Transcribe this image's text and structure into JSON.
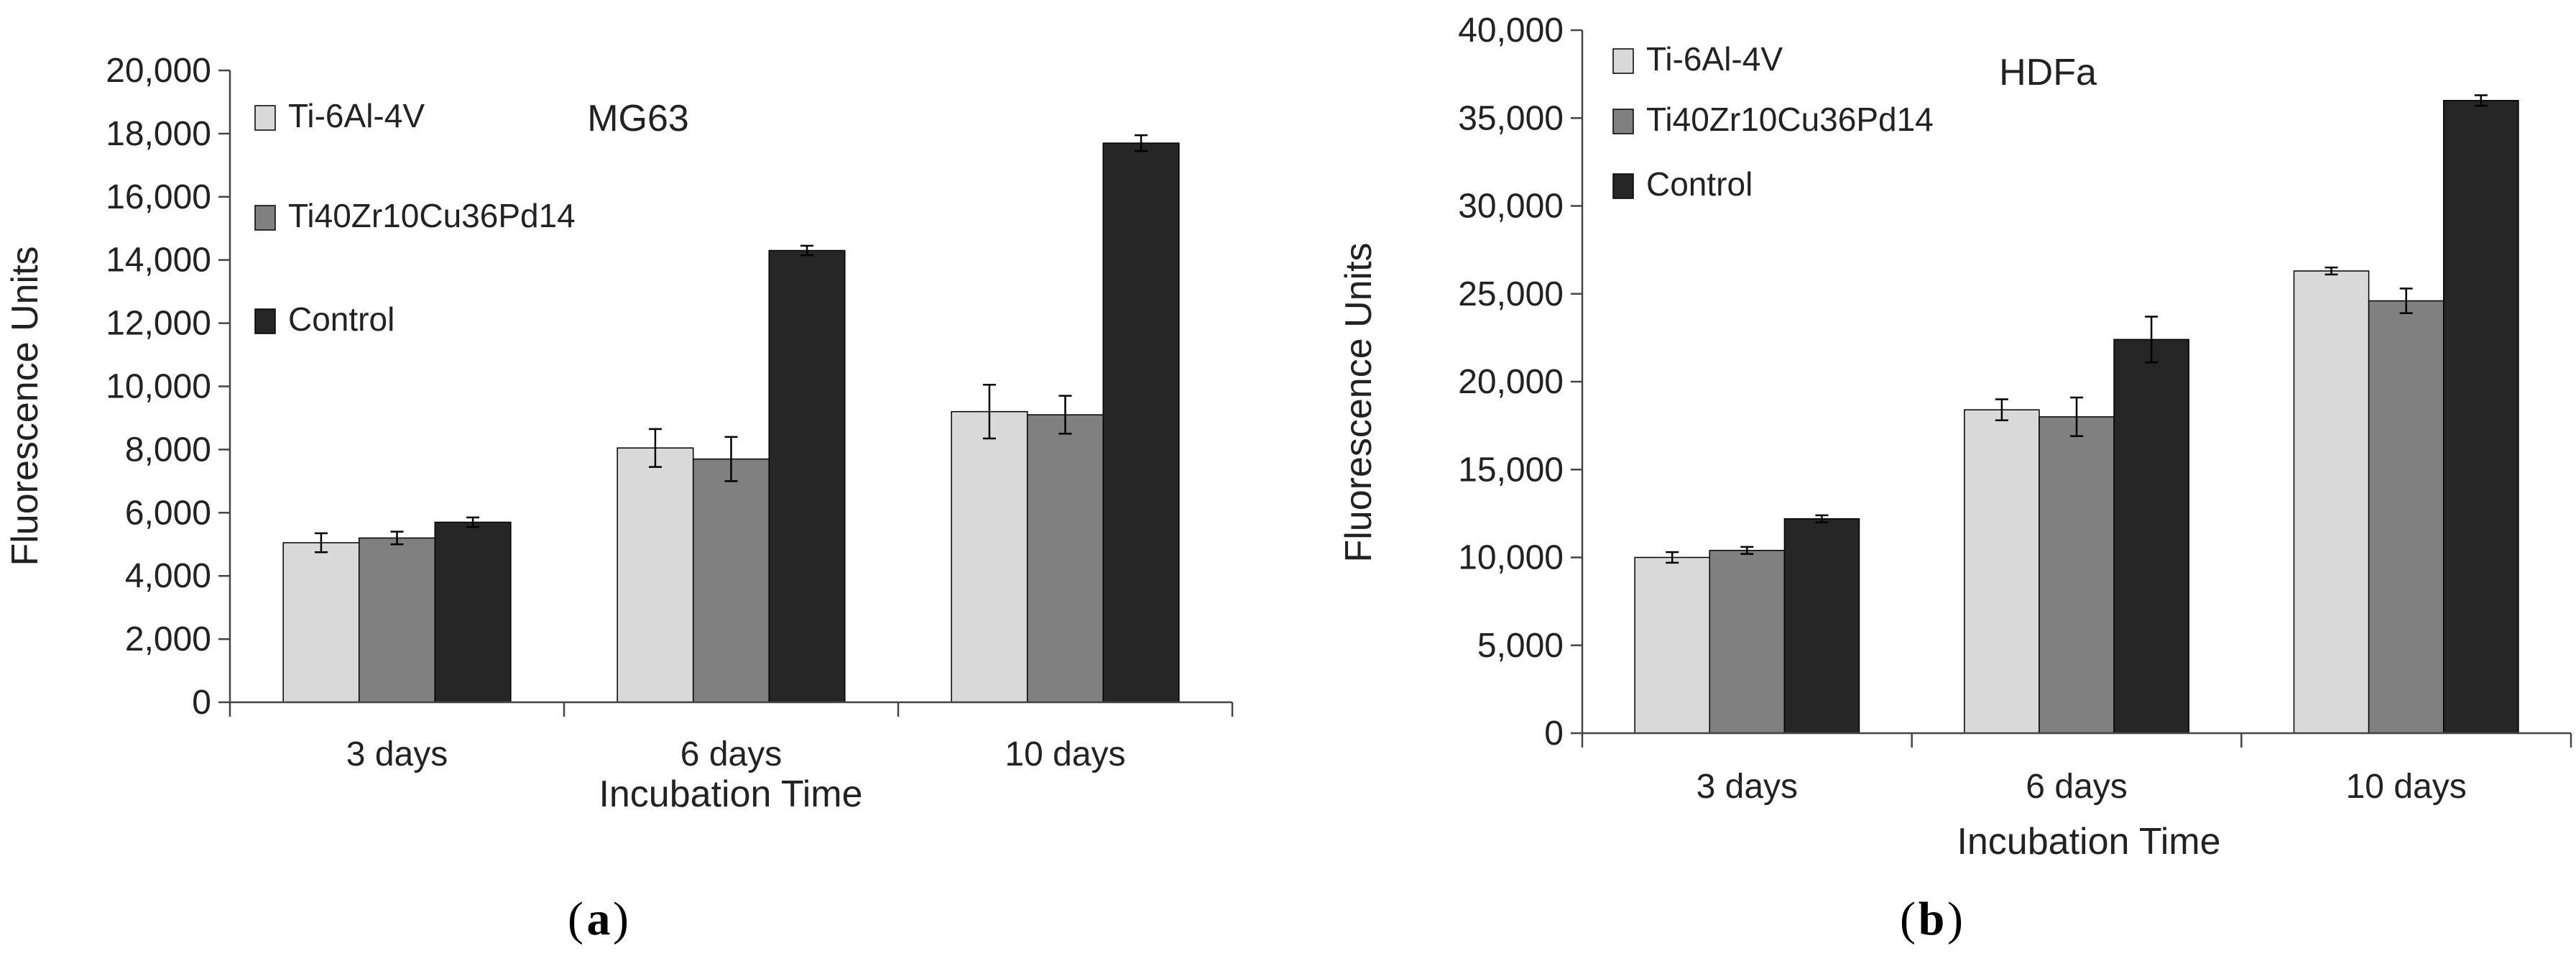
{
  "chart_data": [
    {
      "type": "bar",
      "title": "MG63",
      "panel_label": "a",
      "xlabel": "Incubation Time",
      "ylabel": "Fluorescence Units",
      "categories": [
        "3 days",
        "6 days",
        "10 days"
      ],
      "ylim": [
        0,
        20000
      ],
      "ytick_step": 2000,
      "ytick_labels": [
        "0",
        "2,000",
        "4,000",
        "6,000",
        "8,000",
        "10,000",
        "12,000",
        "14,000",
        "16,000",
        "18,000",
        "20,000"
      ],
      "legend_position": "top-left",
      "series": [
        {
          "name": "Ti-6Al-4V",
          "color": "#d9d9d9",
          "values": [
            5050,
            8050,
            9200
          ],
          "errors": [
            300,
            600,
            850
          ]
        },
        {
          "name": "Ti40Zr10Cu36Pd14",
          "color": "#808080",
          "values": [
            5200,
            7700,
            9100
          ],
          "errors": [
            200,
            700,
            600
          ]
        },
        {
          "name": "Control",
          "color": "#262626",
          "values": [
            5700,
            14300,
            17700
          ],
          "errors": [
            150,
            150,
            250
          ]
        }
      ]
    },
    {
      "type": "bar",
      "title": "HDFa",
      "panel_label": "b",
      "xlabel": "Incubation Time",
      "ylabel": "Fluorescence Units",
      "categories": [
        "3 days",
        "6 days",
        "10 days"
      ],
      "ylim": [
        0,
        40000
      ],
      "ytick_step": 5000,
      "ytick_labels": [
        "0",
        "5,000",
        "10,000",
        "15,000",
        "20,000",
        "25,000",
        "30,000",
        "35,000",
        "40,000"
      ],
      "legend_position": "top-left",
      "series": [
        {
          "name": "Ti-6Al-4V",
          "color": "#d9d9d9",
          "values": [
            10000,
            18400,
            26300
          ],
          "errors": [
            300,
            600,
            200
          ]
        },
        {
          "name": "Ti40Zr10Cu36Pd14",
          "color": "#808080",
          "values": [
            10400,
            18000,
            24600
          ],
          "errors": [
            200,
            1100,
            700
          ]
        },
        {
          "name": "Control",
          "color": "#262626",
          "values": [
            12200,
            22400,
            36000
          ],
          "errors": [
            200,
            1300,
            300
          ]
        }
      ]
    }
  ]
}
